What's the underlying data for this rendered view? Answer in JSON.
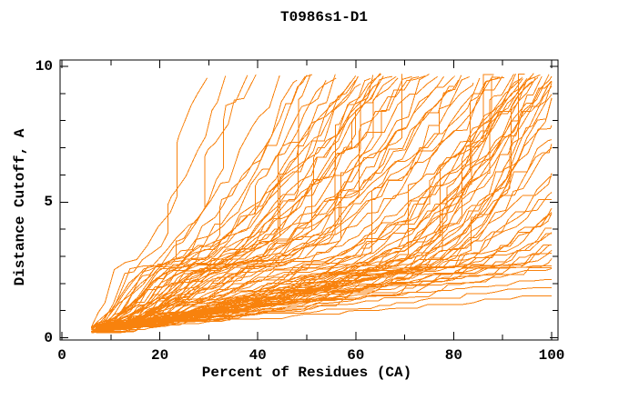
{
  "page": {
    "background": "#ffffff"
  },
  "chart_data": {
    "type": "line",
    "title": "T0986s1-D1",
    "xlabel": "Percent of Residues (CA)",
    "ylabel": "Distance Cutoff, A",
    "xlim": [
      0,
      100
    ],
    "ylim": [
      0,
      10
    ],
    "x_major_ticks": [
      0,
      20,
      40,
      60,
      80,
      100
    ],
    "x_minor_ticks": [
      10,
      30,
      50,
      70,
      90
    ],
    "y_major_ticks": [
      0,
      5,
      10
    ],
    "y_minor_ticks": [
      1,
      2,
      3,
      4,
      6,
      7,
      8,
      9
    ],
    "x_tick_labels": [
      "0",
      "20",
      "40",
      "60",
      "80",
      "100"
    ],
    "y_tick_labels": [
      "0",
      "5",
      "10"
    ],
    "grid": false,
    "legend": null,
    "frame_color": "#000000",
    "line_color": "#f8820d",
    "n_curves": 96,
    "curve_start_cutoff": 0.3,
    "curve_top_cutoff": 9.7,
    "curves_format": "[start_percent, percent_at_2.5A, percent_at_9.7A] per model curve (clipped at 100%)",
    "curves": [
      [
        6,
        11,
        33
      ],
      [
        7,
        13,
        36
      ],
      [
        6,
        16,
        41
      ],
      [
        8,
        14,
        44
      ],
      [
        7,
        18,
        46
      ],
      [
        9,
        17,
        48
      ],
      [
        6,
        19,
        50
      ],
      [
        8,
        21,
        52
      ],
      [
        7,
        16,
        54
      ],
      [
        9,
        20,
        56
      ],
      [
        6,
        22,
        58
      ],
      [
        8,
        18,
        60
      ],
      [
        10,
        23,
        59
      ],
      [
        7,
        21,
        57
      ],
      [
        7,
        20,
        61
      ],
      [
        8,
        24,
        63
      ],
      [
        6,
        22,
        64
      ],
      [
        9,
        26,
        65
      ],
      [
        7,
        23,
        66
      ],
      [
        10,
        28,
        67
      ],
      [
        8,
        25,
        68
      ],
      [
        6,
        27,
        69
      ],
      [
        9,
        24,
        70
      ],
      [
        7,
        30,
        71
      ],
      [
        8,
        26,
        72
      ],
      [
        10,
        32,
        73
      ],
      [
        6,
        28,
        74
      ],
      [
        9,
        31,
        75
      ],
      [
        7,
        27,
        76
      ],
      [
        8,
        34,
        77
      ],
      [
        6,
        30,
        78
      ],
      [
        10,
        33,
        79
      ],
      [
        9,
        29,
        80
      ],
      [
        7,
        36,
        81
      ],
      [
        8,
        32,
        82
      ],
      [
        6,
        38,
        83
      ],
      [
        10,
        35,
        84
      ],
      [
        9,
        37,
        86
      ],
      [
        7,
        33,
        87
      ],
      [
        8,
        40,
        88
      ],
      [
        6,
        36,
        89
      ],
      [
        9,
        42,
        90
      ],
      [
        7,
        39,
        92
      ],
      [
        8,
        44,
        94
      ],
      [
        7,
        45,
        95
      ],
      [
        8,
        50,
        96
      ],
      [
        6,
        48,
        96
      ],
      [
        9,
        55,
        97
      ],
      [
        7,
        52,
        97
      ],
      [
        10,
        58,
        98
      ],
      [
        8,
        46,
        98
      ],
      [
        6,
        60,
        98
      ],
      [
        9,
        54,
        99
      ],
      [
        7,
        62,
        99
      ],
      [
        8,
        49,
        99
      ],
      [
        10,
        65,
        100
      ],
      [
        6,
        57,
        100
      ],
      [
        9,
        68,
        100
      ],
      [
        7,
        51,
        100
      ],
      [
        8,
        70,
        101
      ],
      [
        6,
        63,
        101
      ],
      [
        9,
        56,
        101
      ],
      [
        7,
        72,
        102
      ],
      [
        10,
        59,
        102
      ],
      [
        8,
        66,
        103
      ],
      [
        6,
        74,
        103
      ],
      [
        9,
        61,
        104
      ],
      [
        7,
        69,
        104
      ],
      [
        8,
        76,
        105
      ],
      [
        10,
        64,
        105
      ],
      [
        7,
        60,
        106
      ],
      [
        8,
        65,
        108
      ],
      [
        6,
        70,
        110
      ],
      [
        9,
        62,
        112
      ],
      [
        7,
        75,
        114
      ],
      [
        10,
        68,
        116
      ],
      [
        8,
        80,
        118
      ],
      [
        6,
        72,
        120
      ],
      [
        9,
        85,
        122
      ],
      [
        7,
        66,
        124
      ],
      [
        8,
        78,
        126
      ],
      [
        10,
        88,
        128
      ],
      [
        6,
        74,
        130
      ],
      [
        9,
        82,
        132
      ],
      [
        7,
        90,
        134
      ],
      [
        8,
        70,
        136
      ],
      [
        6,
        86,
        138
      ],
      [
        9,
        94,
        140
      ],
      [
        7,
        76,
        142
      ],
      [
        8,
        98,
        144
      ],
      [
        10,
        84,
        146
      ],
      [
        6,
        102,
        148
      ],
      [
        9,
        92,
        150
      ],
      [
        7,
        115,
        170
      ],
      [
        8,
        135,
        200
      ],
      [
        10,
        160,
        240
      ]
    ]
  }
}
